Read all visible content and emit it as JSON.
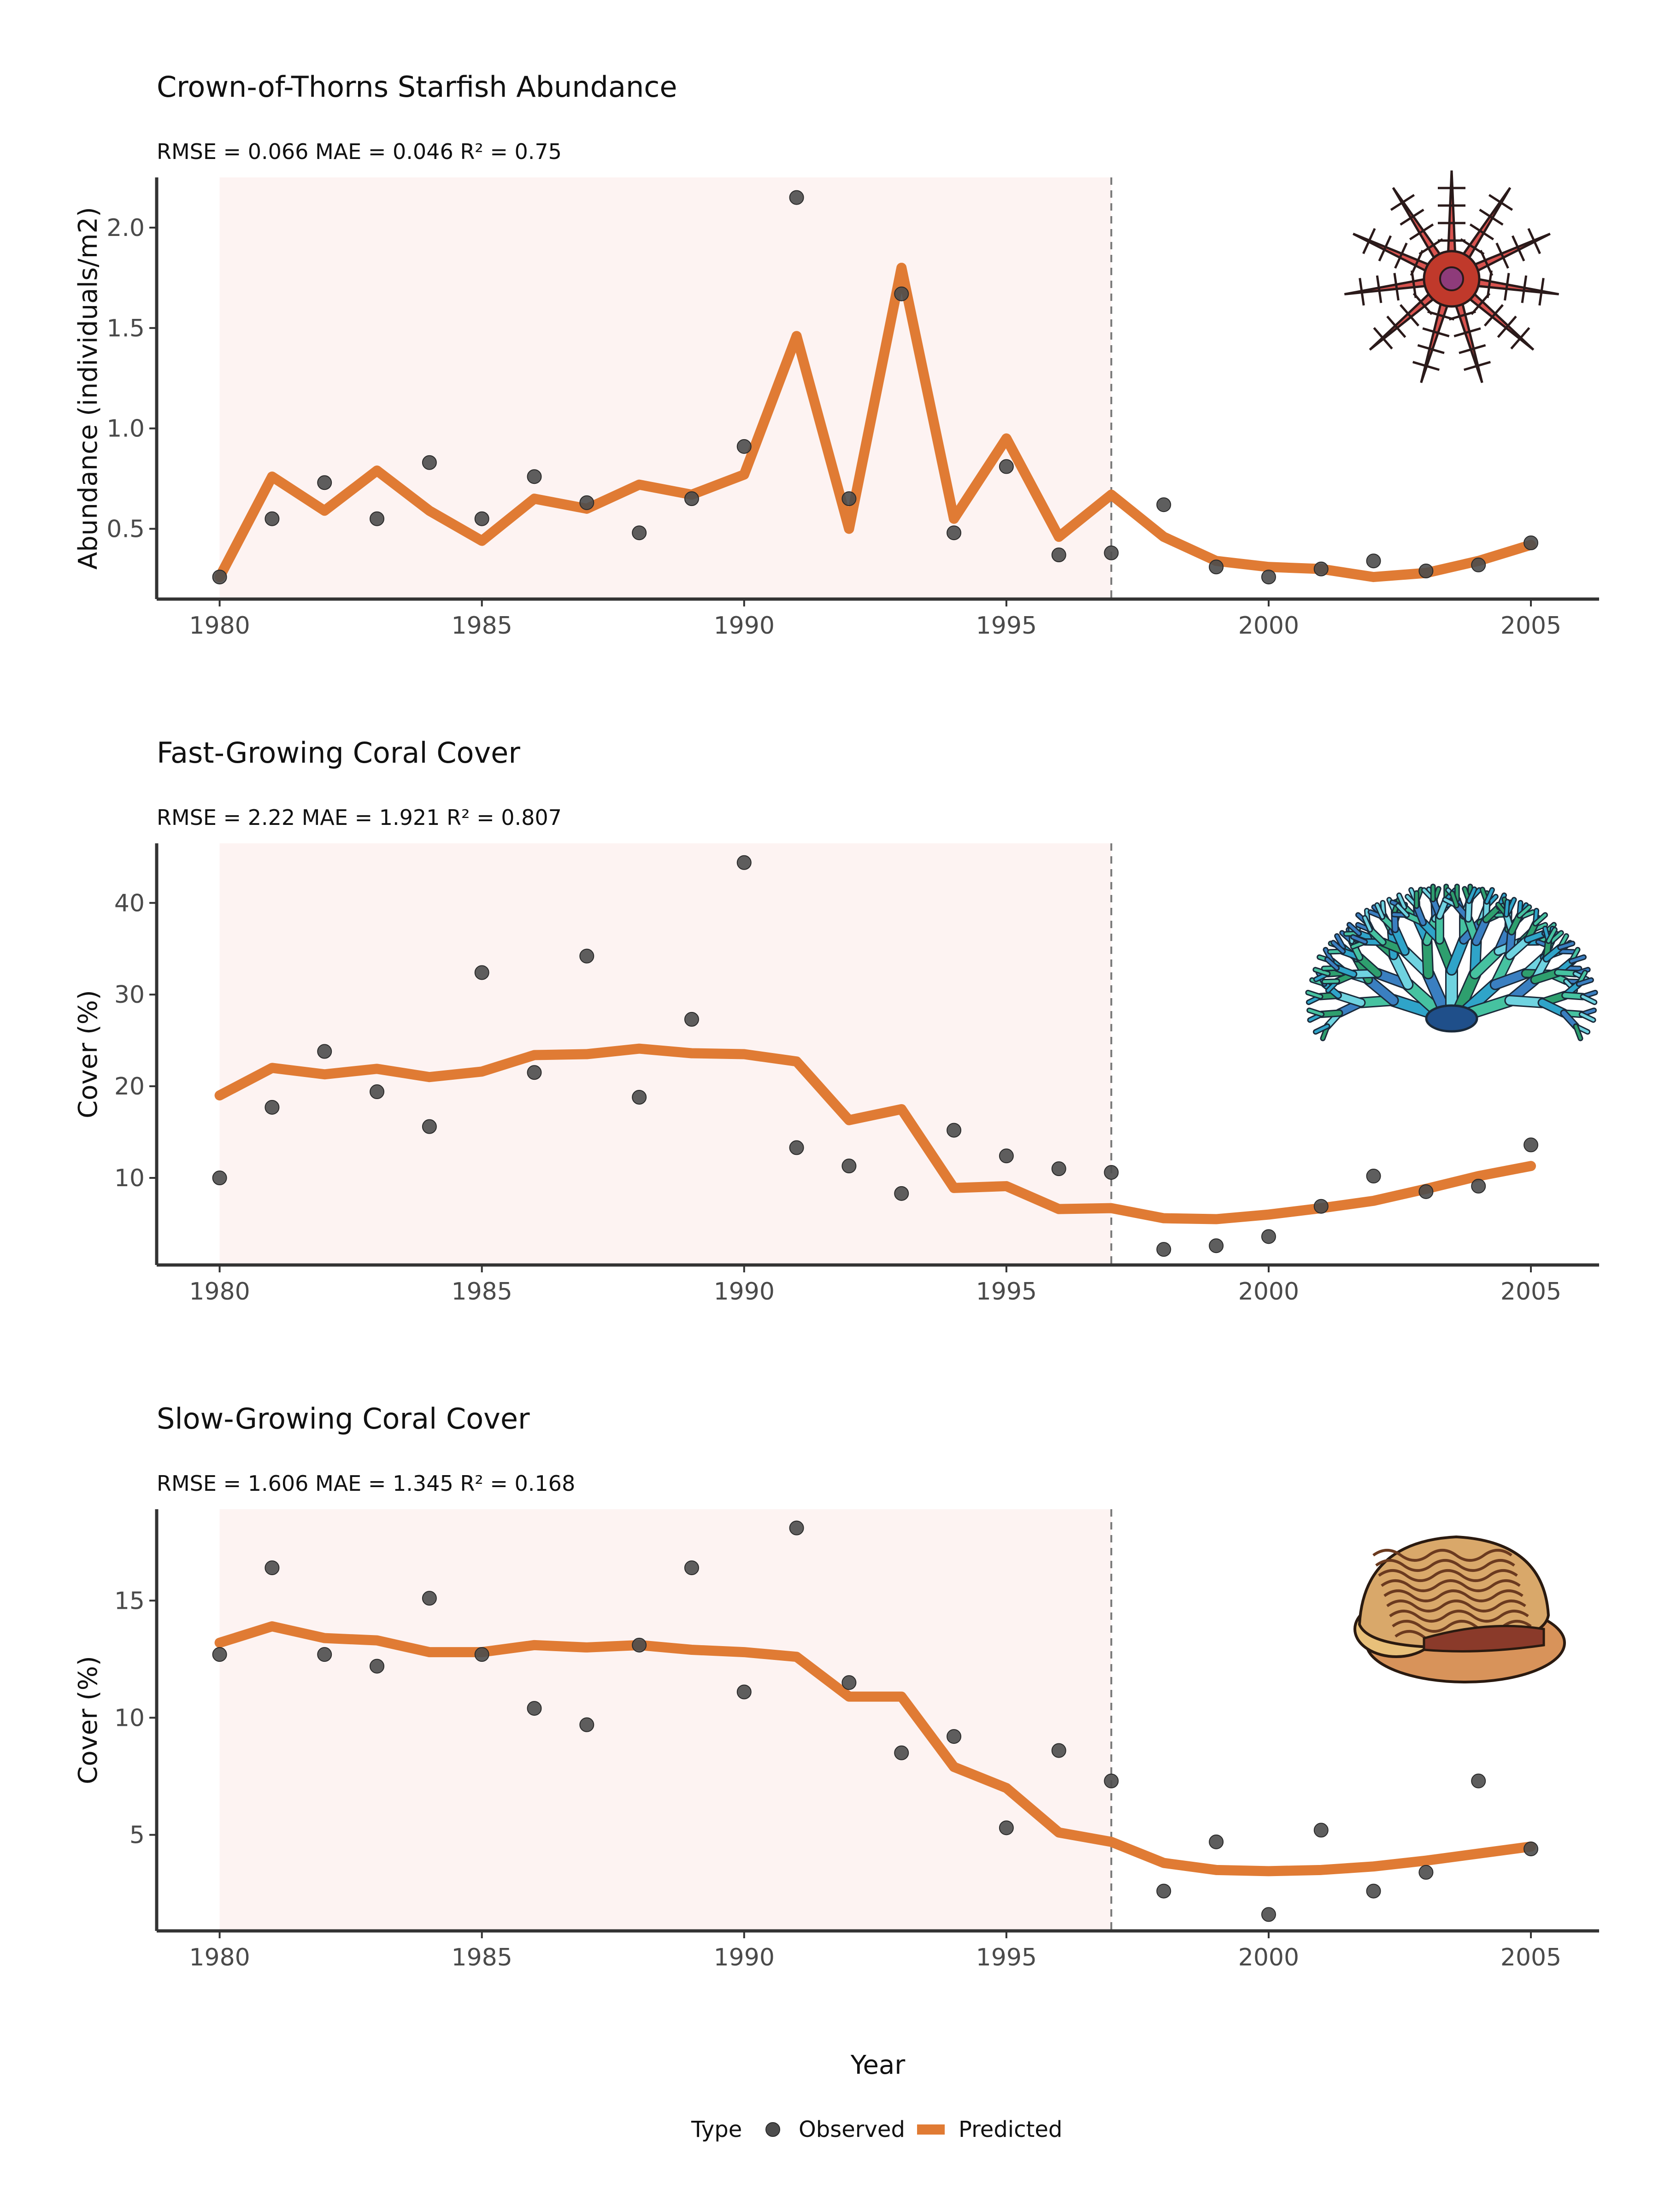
{
  "colors": {
    "observed": "#4d4d4d",
    "predicted": "#e07b34",
    "shade": "#fdf3f2",
    "axis": "#333333",
    "vline": "#777777"
  },
  "legend": {
    "title": "Type",
    "observed": "Observed",
    "predicted": "Predicted"
  },
  "xlabel": "Year",
  "chart_data": [
    {
      "type": "line",
      "title": "Crown-of-Thorns Starfish Abundance",
      "subtitle": "RMSE = 0.066 MAE = 0.046 R² = 0.75",
      "ylabel": "Abundance (individuals/m2)",
      "icon": "starfish-icon",
      "xlim": [
        1978.8,
        2006.3
      ],
      "ylim": [
        0.15,
        2.25
      ],
      "xticks": [
        1980,
        1985,
        1990,
        1995,
        2000,
        2005
      ],
      "yticks": [
        0.5,
        1.0,
        1.5,
        2.0
      ],
      "ytick_labels": [
        "0.5",
        "1.0",
        "1.5",
        "2.0"
      ],
      "shade_range": [
        1980,
        1997
      ],
      "vline": 1997,
      "x": [
        1980,
        1981,
        1982,
        1983,
        1984,
        1985,
        1986,
        1987,
        1988,
        1989,
        1990,
        1991,
        1992,
        1993,
        1994,
        1995,
        1996,
        1997,
        1998,
        1999,
        2000,
        2001,
        2002,
        2003,
        2004,
        2005
      ],
      "series": [
        {
          "name": "Observed",
          "values": [
            0.26,
            0.55,
            0.73,
            0.55,
            0.83,
            0.55,
            0.76,
            0.63,
            0.48,
            0.65,
            0.91,
            2.15,
            0.65,
            1.67,
            0.48,
            0.81,
            0.37,
            0.38,
            0.62,
            0.31,
            0.26,
            0.3,
            0.34,
            0.29,
            0.32,
            0.43
          ]
        },
        {
          "name": "Predicted",
          "values": [
            0.26,
            0.76,
            0.59,
            0.79,
            0.59,
            0.44,
            0.65,
            0.6,
            0.72,
            0.67,
            0.77,
            1.46,
            0.5,
            1.8,
            0.55,
            0.95,
            0.46,
            0.67,
            0.46,
            0.34,
            0.31,
            0.3,
            0.26,
            0.28,
            0.34,
            0.42
          ]
        }
      ]
    },
    {
      "type": "line",
      "title": "Fast-Growing Coral Cover",
      "subtitle": "RMSE = 2.22 MAE = 1.921 R² = 0.807",
      "ylabel": "Cover (%)",
      "icon": "branching-coral-icon",
      "xlim": [
        1978.8,
        2006.3
      ],
      "ylim": [
        0.5,
        46.5
      ],
      "xticks": [
        1980,
        1985,
        1990,
        1995,
        2000,
        2005
      ],
      "yticks": [
        10,
        20,
        30,
        40
      ],
      "ytick_labels": [
        "10",
        "20",
        "30",
        "40"
      ],
      "shade_range": [
        1980,
        1997
      ],
      "vline": 1997,
      "x": [
        1980,
        1981,
        1982,
        1983,
        1984,
        1985,
        1986,
        1987,
        1988,
        1989,
        1990,
        1991,
        1992,
        1993,
        1994,
        1995,
        1996,
        1997,
        1998,
        1999,
        2000,
        2001,
        2002,
        2003,
        2004,
        2005
      ],
      "series": [
        {
          "name": "Observed",
          "values": [
            10.0,
            17.7,
            23.8,
            19.4,
            15.6,
            32.4,
            21.5,
            34.2,
            18.8,
            27.3,
            44.4,
            13.3,
            11.3,
            8.3,
            15.2,
            12.4,
            11.0,
            10.6,
            2.2,
            2.6,
            3.6,
            6.9,
            10.2,
            8.5,
            9.1,
            13.6
          ]
        },
        {
          "name": "Predicted",
          "values": [
            19.0,
            22.0,
            21.3,
            21.9,
            21.0,
            21.6,
            23.4,
            23.5,
            24.1,
            23.6,
            23.5,
            22.7,
            16.3,
            17.5,
            8.9,
            9.1,
            6.6,
            6.7,
            5.6,
            5.5,
            6.0,
            6.7,
            7.5,
            8.8,
            10.2,
            11.3
          ]
        }
      ]
    },
    {
      "type": "line",
      "title": "Slow-Growing Coral Cover",
      "subtitle": "RMSE = 1.606 MAE = 1.345 R² = 0.168",
      "ylabel": "Cover (%)",
      "icon": "brain-coral-icon",
      "xlim": [
        1978.8,
        2006.3
      ],
      "ylim": [
        0.9,
        18.9
      ],
      "xticks": [
        1980,
        1985,
        1990,
        1995,
        2000,
        2005
      ],
      "yticks": [
        5,
        10,
        15
      ],
      "ytick_labels": [
        "5",
        "10",
        "15"
      ],
      "shade_range": [
        1980,
        1997
      ],
      "vline": 1997,
      "x": [
        1980,
        1981,
        1982,
        1983,
        1984,
        1985,
        1986,
        1987,
        1988,
        1989,
        1990,
        1991,
        1992,
        1993,
        1994,
        1995,
        1996,
        1997,
        1998,
        1999,
        2000,
        2001,
        2002,
        2003,
        2004,
        2005
      ],
      "series": [
        {
          "name": "Observed",
          "values": [
            12.7,
            16.4,
            12.7,
            12.2,
            15.1,
            12.7,
            10.4,
            9.7,
            13.1,
            16.4,
            11.1,
            18.1,
            11.5,
            8.5,
            9.2,
            5.3,
            8.6,
            7.3,
            2.6,
            4.7,
            1.6,
            5.2,
            2.6,
            3.4,
            7.3,
            4.4
          ]
        },
        {
          "name": "Predicted",
          "values": [
            13.2,
            13.9,
            13.4,
            13.3,
            12.8,
            12.8,
            13.1,
            13.0,
            13.1,
            12.9,
            12.8,
            12.6,
            10.9,
            10.9,
            7.9,
            7.0,
            5.1,
            4.7,
            3.8,
            3.5,
            3.45,
            3.5,
            3.65,
            3.9,
            4.2,
            4.5
          ]
        }
      ]
    }
  ]
}
